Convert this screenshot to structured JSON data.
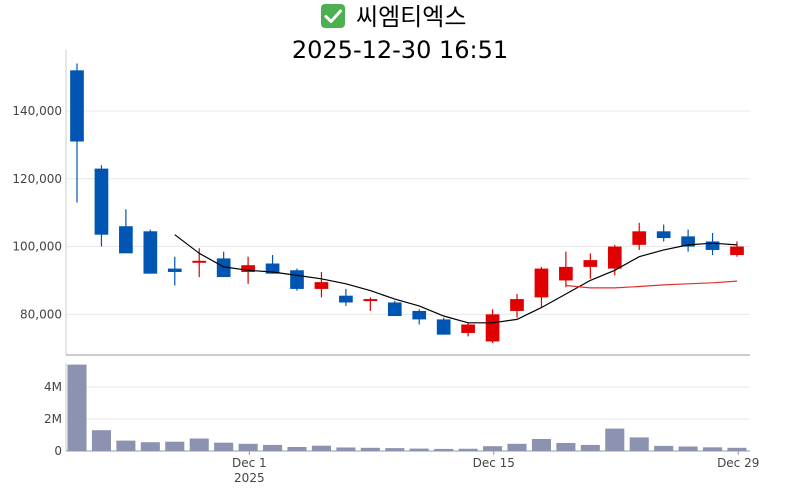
{
  "chart_data": {
    "type": "candlestick",
    "title_icon": "check-mark-button-icon",
    "title_name": "씨엠티엑스",
    "title_time": "2025-12-30 16:51",
    "colors": {
      "up": "#e00000",
      "down": "#0055b3",
      "volume": "#8b93b0",
      "ma_short": "#000000",
      "ma_long": "#e03030",
      "grid": "#e8e8e8",
      "axis": "#999999"
    },
    "price_ticks": [
      {
        "label": "80,000",
        "value": 80000
      },
      {
        "label": "100,000",
        "value": 100000
      },
      {
        "label": "120,000",
        "value": 120000
      },
      {
        "label": "140,000",
        "value": 140000
      }
    ],
    "volume_ticks": [
      {
        "label": "0",
        "value": 0
      },
      {
        "label": "2M",
        "value": 2000000
      },
      {
        "label": "4M",
        "value": 4000000
      }
    ],
    "x_ticks": [
      {
        "label": "Dec 1",
        "sublabel": "2025",
        "index": 7
      },
      {
        "label": "Dec 15",
        "sublabel": "",
        "index": 17
      },
      {
        "label": "Dec 29",
        "sublabel": "",
        "index": 27
      }
    ],
    "price_range": [
      68000,
      158000
    ],
    "volume_range": [
      0,
      5500000
    ],
    "candles": [
      {
        "date": "2025-11-19",
        "open": 152000,
        "high": 154000,
        "low": 113000,
        "close": 131000,
        "volume": 5400000
      },
      {
        "date": "2025-11-20",
        "open": 123000,
        "high": 124000,
        "low": 100000,
        "close": 103500,
        "volume": 1300000
      },
      {
        "date": "2025-11-21",
        "open": 106000,
        "high": 111000,
        "low": 98000,
        "close": 98000,
        "volume": 650000
      },
      {
        "date": "2025-11-24",
        "open": 104500,
        "high": 105000,
        "low": 92000,
        "close": 92000,
        "volume": 550000
      },
      {
        "date": "2025-11-25",
        "open": 93500,
        "high": 97000,
        "low": 88500,
        "close": 92500,
        "volume": 580000
      },
      {
        "date": "2025-11-26",
        "open": 95500,
        "high": 99500,
        "low": 91000,
        "close": 95800,
        "volume": 780000
      },
      {
        "date": "2025-11-27",
        "open": 96500,
        "high": 98500,
        "low": 91000,
        "close": 91000,
        "volume": 520000
      },
      {
        "date": "2025-11-28",
        "open": 92500,
        "high": 97000,
        "low": 89000,
        "close": 94500,
        "volume": 450000
      },
      {
        "date": "2025-12-01",
        "open": 95000,
        "high": 97500,
        "low": 92000,
        "close": 92000,
        "volume": 380000
      },
      {
        "date": "2025-12-02",
        "open": 93000,
        "high": 93500,
        "low": 87000,
        "close": 87500,
        "volume": 250000
      },
      {
        "date": "2025-12-03",
        "open": 87500,
        "high": 92500,
        "low": 85000,
        "close": 89500,
        "volume": 330000
      },
      {
        "date": "2025-12-04",
        "open": 85500,
        "high": 87500,
        "low": 82500,
        "close": 83500,
        "volume": 220000
      },
      {
        "date": "2025-12-05",
        "open": 84000,
        "high": 85000,
        "low": 81000,
        "close": 84500,
        "volume": 200000
      },
      {
        "date": "2025-12-08",
        "open": 83500,
        "high": 84000,
        "low": 79500,
        "close": 79500,
        "volume": 180000
      },
      {
        "date": "2025-12-09",
        "open": 81000,
        "high": 81500,
        "low": 77000,
        "close": 78500,
        "volume": 150000
      },
      {
        "date": "2025-12-10",
        "open": 78500,
        "high": 79000,
        "low": 74000,
        "close": 74000,
        "volume": 130000
      },
      {
        "date": "2025-12-11",
        "open": 74500,
        "high": 77500,
        "low": 73500,
        "close": 77000,
        "volume": 140000
      },
      {
        "date": "2025-12-12",
        "open": 72000,
        "high": 81500,
        "low": 71500,
        "close": 80000,
        "volume": 300000
      },
      {
        "date": "2025-12-15",
        "open": 81000,
        "high": 86000,
        "low": 79000,
        "close": 84500,
        "volume": 450000
      },
      {
        "date": "2025-12-16",
        "open": 85000,
        "high": 94000,
        "low": 82000,
        "close": 93500,
        "volume": 750000
      },
      {
        "date": "2025-12-17",
        "open": 90000,
        "high": 98500,
        "low": 88000,
        "close": 94000,
        "volume": 500000
      },
      {
        "date": "2025-12-18",
        "open": 94000,
        "high": 98000,
        "low": 90500,
        "close": 96000,
        "volume": 380000
      },
      {
        "date": "2025-12-19",
        "open": 93500,
        "high": 100500,
        "low": 91500,
        "close": 100000,
        "volume": 1400000
      },
      {
        "date": "2025-12-22",
        "open": 100500,
        "high": 107000,
        "low": 99000,
        "close": 104500,
        "volume": 850000
      },
      {
        "date": "2025-12-23",
        "open": 104500,
        "high": 106500,
        "low": 101500,
        "close": 102500,
        "volume": 320000
      },
      {
        "date": "2025-12-24",
        "open": 103000,
        "high": 105000,
        "low": 98500,
        "close": 100000,
        "volume": 280000
      },
      {
        "date": "2025-12-26",
        "open": 101500,
        "high": 104000,
        "low": 97500,
        "close": 99000,
        "volume": 230000
      },
      {
        "date": "2025-12-29",
        "open": 97500,
        "high": 101500,
        "low": 97000,
        "close": 100000,
        "volume": 200000
      }
    ],
    "ma_short": [
      {
        "index": 4,
        "value": 103500
      },
      {
        "index": 5,
        "value": 98000
      },
      {
        "index": 6,
        "value": 94000
      },
      {
        "index": 7,
        "value": 93000
      },
      {
        "index": 8,
        "value": 92500
      },
      {
        "index": 9,
        "value": 91500
      },
      {
        "index": 10,
        "value": 90500
      },
      {
        "index": 11,
        "value": 89000
      },
      {
        "index": 12,
        "value": 87000
      },
      {
        "index": 13,
        "value": 84500
      },
      {
        "index": 14,
        "value": 82500
      },
      {
        "index": 15,
        "value": 79500
      },
      {
        "index": 16,
        "value": 77500
      },
      {
        "index": 17,
        "value": 77500
      },
      {
        "index": 18,
        "value": 78500
      },
      {
        "index": 19,
        "value": 82000
      },
      {
        "index": 20,
        "value": 86000
      },
      {
        "index": 21,
        "value": 90000
      },
      {
        "index": 22,
        "value": 93000
      },
      {
        "index": 23,
        "value": 97000
      },
      {
        "index": 24,
        "value": 99000
      },
      {
        "index": 25,
        "value": 100500
      },
      {
        "index": 26,
        "value": 101000
      },
      {
        "index": 27,
        "value": 100500
      }
    ],
    "ma_long": [
      {
        "index": 20,
        "value": 88500
      },
      {
        "index": 21,
        "value": 87800
      },
      {
        "index": 22,
        "value": 87800
      },
      {
        "index": 23,
        "value": 88200
      },
      {
        "index": 24,
        "value": 88700
      },
      {
        "index": 25,
        "value": 89000
      },
      {
        "index": 26,
        "value": 89300
      },
      {
        "index": 27,
        "value": 89800
      }
    ]
  }
}
